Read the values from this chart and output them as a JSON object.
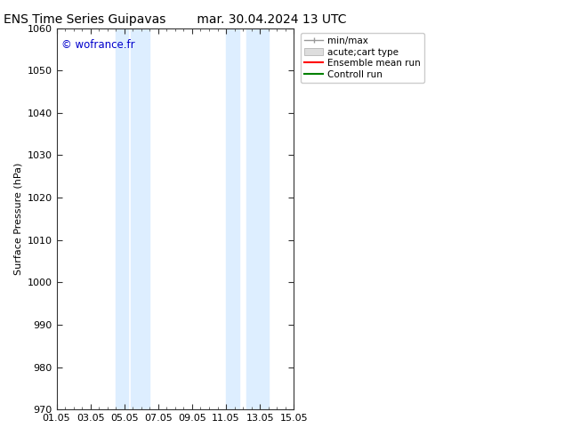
{
  "title_left": "ENS Time Series Guipavas",
  "title_right": "mar. 30.04.2024 13 UTC",
  "ylabel": "Surface Pressure (hPa)",
  "ylim": [
    970,
    1060
  ],
  "yticks": [
    970,
    980,
    990,
    1000,
    1010,
    1020,
    1030,
    1040,
    1050,
    1060
  ],
  "xlim_start": 0,
  "xlim_end": 14,
  "xtick_labels": [
    "01.05",
    "03.05",
    "05.05",
    "07.05",
    "09.05",
    "11.05",
    "13.05",
    "15.05"
  ],
  "xtick_positions": [
    0,
    2,
    4,
    6,
    8,
    10,
    12,
    14
  ],
  "shaded_bands": [
    {
      "x_start": 3.5,
      "x_end": 4.2
    },
    {
      "x_start": 4.4,
      "x_end": 5.5
    },
    {
      "x_start": 10.0,
      "x_end": 10.8
    },
    {
      "x_start": 11.2,
      "x_end": 12.5
    }
  ],
  "shaded_color": "#ddeeff",
  "watermark_text": "© wofrance.fr",
  "watermark_color": "#0000cc",
  "background_color": "#ffffff",
  "legend_items": [
    {
      "label": "min/max",
      "color": "#aaaaaa",
      "lw": 1.0
    },
    {
      "label": "acute;cart type",
      "color": "#cccccc",
      "lw": 6
    },
    {
      "label": "Ensemble mean run",
      "color": "red",
      "lw": 1.5
    },
    {
      "label": "Controll run",
      "color": "green",
      "lw": 1.5
    }
  ],
  "title_fontsize": 10,
  "axis_fontsize": 8,
  "tick_fontsize": 8,
  "legend_fontsize": 7.5
}
